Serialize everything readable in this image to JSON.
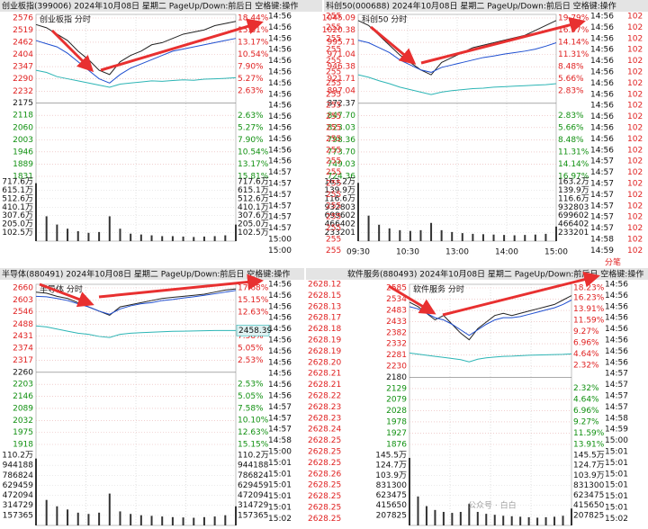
{
  "chart_data": [
    {
      "type": "line",
      "title": "创业板指(399006)  2024年10月08日 星期二  PageUp/Down:前后日  空格键:操作",
      "label": "创业板指   分时",
      "ylim": [
        1831,
        2576
      ],
      "yticks": [
        2576,
        2519,
        2462,
        2404,
        2347,
        2290,
        2232,
        2175,
        2118,
        2060,
        2003,
        1946,
        1889,
        1831
      ],
      "y2lim": [
        -15.81,
        18.44
      ],
      "y2ticks": [
        {
          "value": 18.44,
          "label": "18.44%"
        },
        {
          "value": 15.81,
          "label": "15.81%"
        },
        {
          "value": 13.17,
          "label": "13.17%"
        },
        {
          "value": 10.54,
          "label": "10.54%"
        },
        {
          "value": 7.9,
          "label": "7.90%"
        },
        {
          "value": 5.27,
          "label": "5.27%"
        },
        {
          "value": 2.63,
          "label": "2.63%"
        },
        {
          "value": -2.63,
          "label": "2.63%"
        },
        {
          "value": -5.27,
          "label": "5.27%"
        },
        {
          "value": -7.9,
          "label": "7.90%"
        },
        {
          "value": -10.54,
          "label": "10.54%"
        },
        {
          "value": -13.17,
          "label": "13.17%"
        },
        {
          "value": -15.81,
          "label": "15.81%"
        }
      ],
      "volume_lim": [
        0,
        717.6
      ],
      "volume_ticks": [
        {
          "value": 717.6,
          "label": "717.6万"
        },
        {
          "value": 615.1,
          "label": "615.1万"
        },
        {
          "value": 512.6,
          "label": "512.6万"
        },
        {
          "value": 410.1,
          "label": "410.1万"
        },
        {
          "value": 307.6,
          "label": "307.6万"
        },
        {
          "value": 205.0,
          "label": "205.0万"
        },
        {
          "value": 102.5,
          "label": "102.5万"
        }
      ],
      "series": [
        {
          "color": "#222222",
          "values": [
            2545,
            2530,
            2500,
            2470,
            2420,
            2380,
            2330,
            2310,
            2370,
            2400,
            2420,
            2450,
            2460,
            2480,
            2500,
            2510,
            2520,
            2540,
            2550,
            2560
          ]
        },
        {
          "color": "#1f4fd0",
          "values": [
            2470,
            2455,
            2440,
            2410,
            2370,
            2330,
            2290,
            2270,
            2310,
            2340,
            2360,
            2380,
            2400,
            2420,
            2430,
            2440,
            2450,
            2460,
            2470,
            2480
          ]
        },
        {
          "color": "#2cb5b5",
          "values": [
            2330,
            2320,
            2300,
            2290,
            2280,
            2270,
            2260,
            2250,
            2265,
            2270,
            2275,
            2280,
            2278,
            2282,
            2285,
            2283,
            2288,
            2290,
            2292,
            2295
          ]
        }
      ],
      "volume_color": "#333333",
      "volume": [
        700,
        300,
        200,
        150,
        120,
        100,
        110,
        300,
        150,
        90,
        80,
        70,
        60,
        60,
        55,
        50,
        55,
        60,
        70,
        200
      ],
      "side": [
        "14:56",
        "14:56",
        "14:56",
        "14:56",
        "14:56",
        "14:56",
        "14:56",
        "14:56",
        "14:56",
        "14:56",
        "14:56",
        "14:56",
        "14:56",
        "14:56",
        "14:57",
        "14:57",
        "14:57",
        "14:57",
        "14:57",
        "14:57",
        "15:00",
        "15:00"
      ]
    },
    {
      "type": "line",
      "title": "科创50(000688)  2024年10月08日 星期二  PageUp/Down:前后日  空格键:操作",
      "label": "科创50   分时",
      "ylim": [
        724.36,
        1045.09
      ],
      "yticks": [
        1045.09,
        1020.38,
        995.71,
        971.04,
        946.38,
        921.71,
        897.04,
        872.37,
        {
          "value": 847.7,
          "label": "847.70"
        },
        823.03,
        798.36,
        {
          "value": 773.7,
          "label": "773.70"
        },
        749.03,
        724.36
      ],
      "y2lim": [
        -16.97,
        19.79
      ],
      "y2ticks": [
        {
          "value": 19.79,
          "label": "19.79%"
        },
        {
          "value": 16.97,
          "label": "16.97%"
        },
        {
          "value": 14.14,
          "label": "14.14%"
        },
        {
          "value": 11.31,
          "label": "11.31%"
        },
        {
          "value": 8.48,
          "label": "8.48%"
        },
        {
          "value": 5.66,
          "label": "5.66%"
        },
        {
          "value": 2.83,
          "label": "2.83%"
        },
        {
          "value": -2.83,
          "label": "2.83%"
        },
        {
          "value": -5.66,
          "label": "5.66%"
        },
        {
          "value": -8.48,
          "label": "8.48%"
        },
        {
          "value": -11.31,
          "label": "11.31%"
        },
        {
          "value": -14.14,
          "label": "14.14%"
        },
        {
          "value": -16.97,
          "label": "16.97%"
        }
      ],
      "volume_lim": [
        0,
        1632000
      ],
      "volume_ticks": [
        {
          "value": 1632000,
          "label": "163.2万"
        },
        {
          "value": 1399000,
          "label": "139.9万"
        },
        {
          "value": 1166000,
          "label": "116.6万"
        },
        932803,
        699602,
        466402,
        233201
      ],
      "series": [
        {
          "color": "#222222",
          "values": [
            1040,
            1030,
            1010,
            990,
            970,
            955,
            940,
            930,
            955,
            965,
            975,
            985,
            990,
            995,
            1000,
            1005,
            1010,
            1020,
            1030,
            1040
          ]
        },
        {
          "color": "#1f4fd0",
          "values": [
            1000,
            995,
            985,
            975,
            960,
            950,
            940,
            935,
            945,
            950,
            955,
            960,
            965,
            968,
            972,
            975,
            978,
            982,
            988,
            995
          ]
        },
        {
          "color": "#2cb5b5",
          "values": [
            930,
            925,
            918,
            912,
            905,
            900,
            895,
            890,
            895,
            898,
            900,
            902,
            903,
            905,
            906,
            907,
            908,
            909,
            910,
            912
          ]
        }
      ],
      "volume_color": "#333333",
      "volume": [
        1600000,
        700000,
        450000,
        350000,
        300000,
        280000,
        300000,
        500000,
        300000,
        250000,
        220000,
        200000,
        190000,
        180000,
        170000,
        160000,
        170000,
        180000,
        200000,
        400000
      ],
      "xlabels": [
        "09:30",
        "10:30",
        "13:00",
        "14:00",
        "15:00"
      ],
      "side": [
        "14:56",
        "14:56",
        "14:56",
        "14:56",
        "14:56",
        "14:56",
        "14:56",
        "14:56",
        "14:56",
        "14:56",
        "14:56",
        "14:56",
        "14:56",
        "14:57",
        "14:57",
        "14:57",
        "14:57",
        "14:57",
        "14:57",
        "14:57",
        "14:58",
        "14:59"
      ],
      "extra_left": [
        "255",
        "255",
        "255",
        "255",
        "255",
        "255",
        "255",
        "255",
        "255",
        "255",
        "255",
        "255",
        "255",
        "255",
        "255",
        "255",
        "255",
        "255",
        "255",
        "255",
        "255",
        "255"
      ],
      "extra_right": [
        "102",
        "102",
        "102",
        "102",
        "102",
        "102",
        "102",
        "102",
        "102",
        "102",
        "102",
        "102",
        "102",
        "102",
        "102",
        "102",
        "102",
        "102",
        "102",
        "102",
        "102",
        "102"
      ],
      "footer_tab": "分笔"
    },
    {
      "type": "line",
      "title": "半导体(880491)  2024年10月08日 星期二  PageUp/Down:前后日  空格键:操作",
      "label": "半导体   分时",
      "ylim": [
        1918,
        2660
      ],
      "yticks": [
        2660,
        2603,
        2546,
        2488,
        2431,
        2374,
        2317,
        2260,
        2203,
        2146,
        2089,
        2032,
        1975,
        1918
      ],
      "y2lim": [
        -15.15,
        17.68
      ],
      "y2ticks": [
        {
          "value": 17.68,
          "label": "17.68%"
        },
        {
          "value": 15.15,
          "label": "15.15%"
        },
        {
          "value": 12.63,
          "label": "12.63%"
        },
        {
          "value": 7.58,
          "label": "7.58%"
        },
        {
          "value": 5.05,
          "label": "5.05%"
        },
        {
          "value": 2.53,
          "label": "2.53%"
        },
        {
          "value": -2.53,
          "label": "2.53%"
        },
        {
          "value": -5.05,
          "label": "5.05%"
        },
        {
          "value": -7.58,
          "label": "7.58%"
        },
        {
          "value": -10.1,
          "label": "10.10%"
        },
        {
          "value": -12.63,
          "label": "12.63%"
        },
        {
          "value": -15.15,
          "label": "15.15%"
        }
      ],
      "current_label": "2458.39",
      "current_value": 2458.39,
      "volume_lim": [
        0,
        1102000
      ],
      "volume_ticks": [
        {
          "value": 1102000,
          "label": "110.2万"
        },
        944188,
        786824,
        629459,
        472094,
        314729,
        157365
      ],
      "series": [
        {
          "color": "#222222",
          "values": [
            2640,
            2635,
            2620,
            2610,
            2590,
            2570,
            2550,
            2530,
            2570,
            2580,
            2590,
            2600,
            2610,
            2615,
            2620,
            2625,
            2630,
            2640,
            2650,
            2655
          ]
        },
        {
          "color": "#1f4fd0",
          "values": [
            2620,
            2618,
            2610,
            2600,
            2585,
            2570,
            2550,
            2535,
            2560,
            2575,
            2585,
            2590,
            2600,
            2605,
            2612,
            2618,
            2625,
            2632,
            2640,
            2648
          ]
        },
        {
          "color": "#2cb5b5",
          "values": [
            2480,
            2475,
            2465,
            2455,
            2445,
            2440,
            2430,
            2425,
            2440,
            2445,
            2448,
            2450,
            2452,
            2454,
            2455,
            2456,
            2457,
            2458,
            2458,
            2458
          ]
        }
      ],
      "volume_color": "#333333",
      "volume": [
        1050000,
        400000,
        300000,
        250000,
        200000,
        180000,
        200000,
        500000,
        220000,
        180000,
        160000,
        150000,
        140000,
        130000,
        125000,
        120000,
        130000,
        140000,
        160000,
        300000
      ],
      "side": [
        "14:56",
        "14:56",
        "14:56",
        "14:56",
        "14:56",
        "14:56",
        "14:56",
        "14:56",
        "14:56",
        "14:56",
        "14:56",
        "14:57",
        "14:57",
        "14:57",
        "14:58",
        "15:00",
        "15:01",
        "15:01",
        "15:01",
        "15:01",
        "15:01",
        "15:02"
      ],
      "side2": [
        "2628.12",
        "2628.15",
        "2628.13",
        "2628.17",
        "2628.18",
        "2628.19",
        "2628.19",
        "2628.20",
        "2628.21",
        "2628.21",
        "2628.22",
        "2628.23",
        "2628.23",
        "2628.24",
        "2628.25",
        "2628.25",
        "2628.25",
        "2628.26",
        "2628.25",
        "2628.25",
        "2628.25",
        "2628.25"
      ]
    },
    {
      "type": "line",
      "title": "软件服务(880493)  2024年10月08日 星期二  PageUp/Down:前后日  空格键:操作",
      "label": "软件服务   分时",
      "ylim": [
        1876,
        2585
      ],
      "yticks": [
        2585,
        2534,
        2483,
        2433,
        2382,
        2332,
        2281,
        2230,
        2180,
        2129,
        2079,
        2028,
        1978,
        1927,
        1876
      ],
      "y2lim": [
        -13.91,
        18.23
      ],
      "y2ticks": [
        {
          "value": 18.23,
          "label": "18.23%"
        },
        {
          "value": 16.23,
          "label": "16.23%"
        },
        {
          "value": 13.91,
          "label": "13.91%"
        },
        {
          "value": 11.59,
          "label": "11.59%"
        },
        {
          "value": 9.27,
          "label": "9.27%"
        },
        {
          "value": 6.96,
          "label": "6.96%"
        },
        {
          "value": 4.64,
          "label": "4.64%"
        },
        {
          "value": 2.32,
          "label": "2.32%"
        },
        {
          "value": -2.32,
          "label": "2.32%"
        },
        {
          "value": -4.64,
          "label": "4.64%"
        },
        {
          "value": -6.96,
          "label": "6.96%"
        },
        {
          "value": -9.27,
          "label": "9.27%"
        },
        {
          "value": -11.59,
          "label": "11.59%"
        },
        {
          "value": -13.91,
          "label": "13.91%"
        }
      ],
      "volume_lim": [
        0,
        1455000
      ],
      "volume_ticks": [
        {
          "value": 1455000,
          "label": "145.5万"
        },
        {
          "value": 1247000,
          "label": "124.7万"
        },
        {
          "value": 1039000,
          "label": "103.9万"
        },
        831300,
        623475,
        415650,
        207825
      ],
      "series": [
        {
          "color": "#222222",
          "values": [
            2520,
            2500,
            2470,
            2440,
            2460,
            2420,
            2380,
            2350,
            2400,
            2430,
            2460,
            2470,
            2460,
            2470,
            2480,
            2490,
            2500,
            2510,
            2530,
            2550
          ]
        },
        {
          "color": "#1f4fd0",
          "values": [
            2500,
            2490,
            2470,
            2450,
            2440,
            2420,
            2395,
            2370,
            2395,
            2420,
            2440,
            2450,
            2450,
            2455,
            2465,
            2475,
            2485,
            2495,
            2510,
            2530
          ]
        },
        {
          "color": "#2cb5b5",
          "values": [
            2290,
            2285,
            2280,
            2275,
            2270,
            2265,
            2260,
            2250,
            2262,
            2268,
            2272,
            2275,
            2276,
            2278,
            2280,
            2281,
            2282,
            2283,
            2284,
            2286
          ]
        }
      ],
      "volume_color": "#333333",
      "volume": [
        1400000,
        600000,
        400000,
        320000,
        280000,
        260000,
        280000,
        450000,
        280000,
        240000,
        220000,
        200000,
        190000,
        180000,
        170000,
        160000,
        170000,
        180000,
        200000,
        350000
      ],
      "side": [
        "14:56",
        "14:56",
        "14:56",
        "14:56",
        "14:56",
        "14:56",
        "14:56",
        "14:56",
        "14:57",
        "14:57",
        "14:57",
        "14:57",
        "14:58",
        "14:59",
        "15:00",
        "15:01",
        "15:01",
        "15:01",
        "15:01",
        "15:01",
        "15:01",
        "15:02"
      ],
      "watermark": "公众号 · 白白"
    }
  ]
}
